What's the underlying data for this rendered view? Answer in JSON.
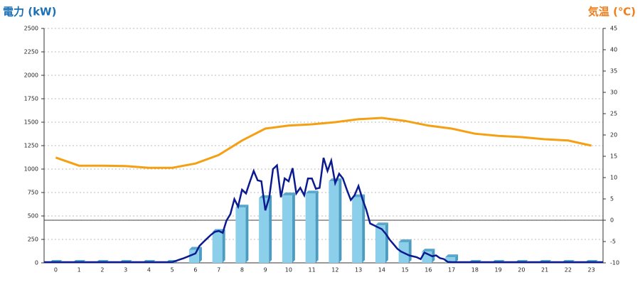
{
  "chart_data": {
    "type": "bar",
    "y_title": "電力 (kW)",
    "y2_title": "気温 (℃)",
    "categories": [
      "0",
      "1",
      "2",
      "3",
      "4",
      "5",
      "6",
      "7",
      "8",
      "9",
      "10",
      "11",
      "12",
      "13",
      "14",
      "15",
      "16",
      "17",
      "18",
      "19",
      "20",
      "21",
      "22",
      "23"
    ],
    "ylim": [
      0,
      2500
    ],
    "yticks": [
      0,
      250,
      500,
      750,
      1000,
      1250,
      1500,
      1750,
      2000,
      2250,
      2500
    ],
    "y2lim": [
      -10,
      45
    ],
    "y2ticks": [
      -10,
      -5,
      0,
      5,
      10,
      15,
      20,
      25,
      30,
      35,
      40,
      45
    ],
    "xlim": [
      -0.5,
      23.5
    ],
    "grid": true,
    "bars": {
      "color": "#8ccfea",
      "values": [
        0,
        0,
        0,
        0,
        0,
        0,
        140,
        330,
        590,
        690,
        720,
        740,
        870,
        700,
        400,
        220,
        120,
        60,
        0,
        0,
        0,
        0,
        0,
        0
      ]
    },
    "power_line": {
      "color": "#0b1a8f",
      "x": [
        -0.5,
        5.0,
        5.5,
        6.0,
        6.17,
        6.33,
        6.5,
        6.67,
        6.83,
        7.0,
        7.17,
        7.33,
        7.5,
        7.67,
        7.83,
        8.0,
        8.17,
        8.33,
        8.5,
        8.67,
        8.83,
        9.0,
        9.17,
        9.33,
        9.5,
        9.67,
        9.83,
        10.0,
        10.17,
        10.33,
        10.5,
        10.67,
        10.83,
        11.0,
        11.17,
        11.33,
        11.5,
        11.67,
        11.83,
        12.0,
        12.17,
        12.33,
        12.5,
        12.67,
        12.83,
        13.0,
        13.17,
        13.33,
        13.5,
        13.67,
        13.83,
        14.0,
        14.17,
        14.33,
        14.5,
        14.67,
        14.83,
        15.0,
        15.17,
        15.33,
        15.5,
        15.67,
        15.83,
        16.0,
        16.17,
        16.33,
        16.5,
        16.67,
        16.83,
        17.0,
        23.5
      ],
      "values": [
        0,
        0,
        50,
        100,
        180,
        220,
        260,
        300,
        330,
        340,
        320,
        450,
        520,
        680,
        600,
        780,
        740,
        860,
        980,
        880,
        870,
        560,
        700,
        1000,
        1040,
        700,
        900,
        870,
        1010,
        740,
        800,
        720,
        900,
        900,
        790,
        800,
        1120,
        980,
        1090,
        850,
        950,
        900,
        780,
        670,
        720,
        820,
        680,
        570,
        420,
        400,
        380,
        360,
        310,
        250,
        200,
        150,
        120,
        100,
        80,
        70,
        60,
        40,
        110,
        90,
        70,
        80,
        50,
        40,
        10,
        0,
        0
      ]
    },
    "temperature": {
      "color": "#f5a012",
      "axis": "y2",
      "values": [
        14.7,
        12.8,
        12.8,
        12.7,
        12.3,
        12.3,
        13.3,
        15.3,
        18.7,
        21.5,
        22.2,
        22.5,
        23,
        23.7,
        24,
        23.3,
        22.2,
        21.5,
        20.3,
        19.8,
        19.5,
        19,
        18.7,
        17.5
      ]
    }
  }
}
